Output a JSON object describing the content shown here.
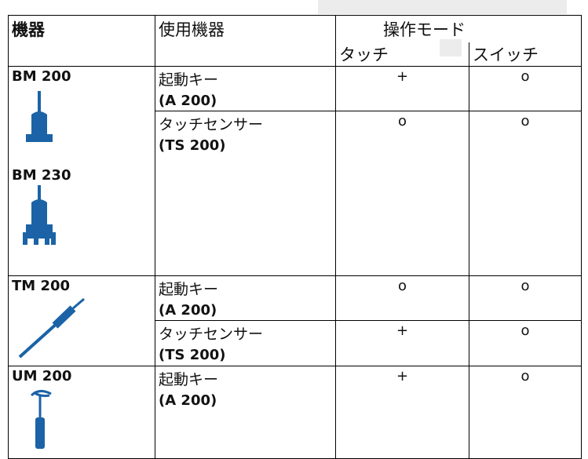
{
  "header": {
    "device": "機器",
    "used_device": "使用機器",
    "mode": "操作モード",
    "touch": "タッチ",
    "switch": "スイッチ"
  },
  "groups": [
    {
      "devices": [
        "BM 200",
        "BM 230"
      ],
      "rows": [
        {
          "name": "起動キー",
          "model": "(A 200)",
          "touch": "+",
          "switch": "o"
        },
        {
          "name": "タッチセンサー",
          "model": "(TS 200)",
          "touch": "o",
          "switch": "o"
        }
      ]
    },
    {
      "devices": [
        "TM 200"
      ],
      "rows": [
        {
          "name": "起動キー",
          "model": "(A 200)",
          "touch": "o",
          "switch": "o"
        },
        {
          "name": "タッチセンサー",
          "model": "(TS 200)",
          "touch": "+",
          "switch": "o"
        }
      ]
    },
    {
      "devices": [
        "UM 200"
      ],
      "rows": [
        {
          "name": "起動キー",
          "model": "(A 200)",
          "touch": "+",
          "switch": "o"
        }
      ]
    }
  ]
}
